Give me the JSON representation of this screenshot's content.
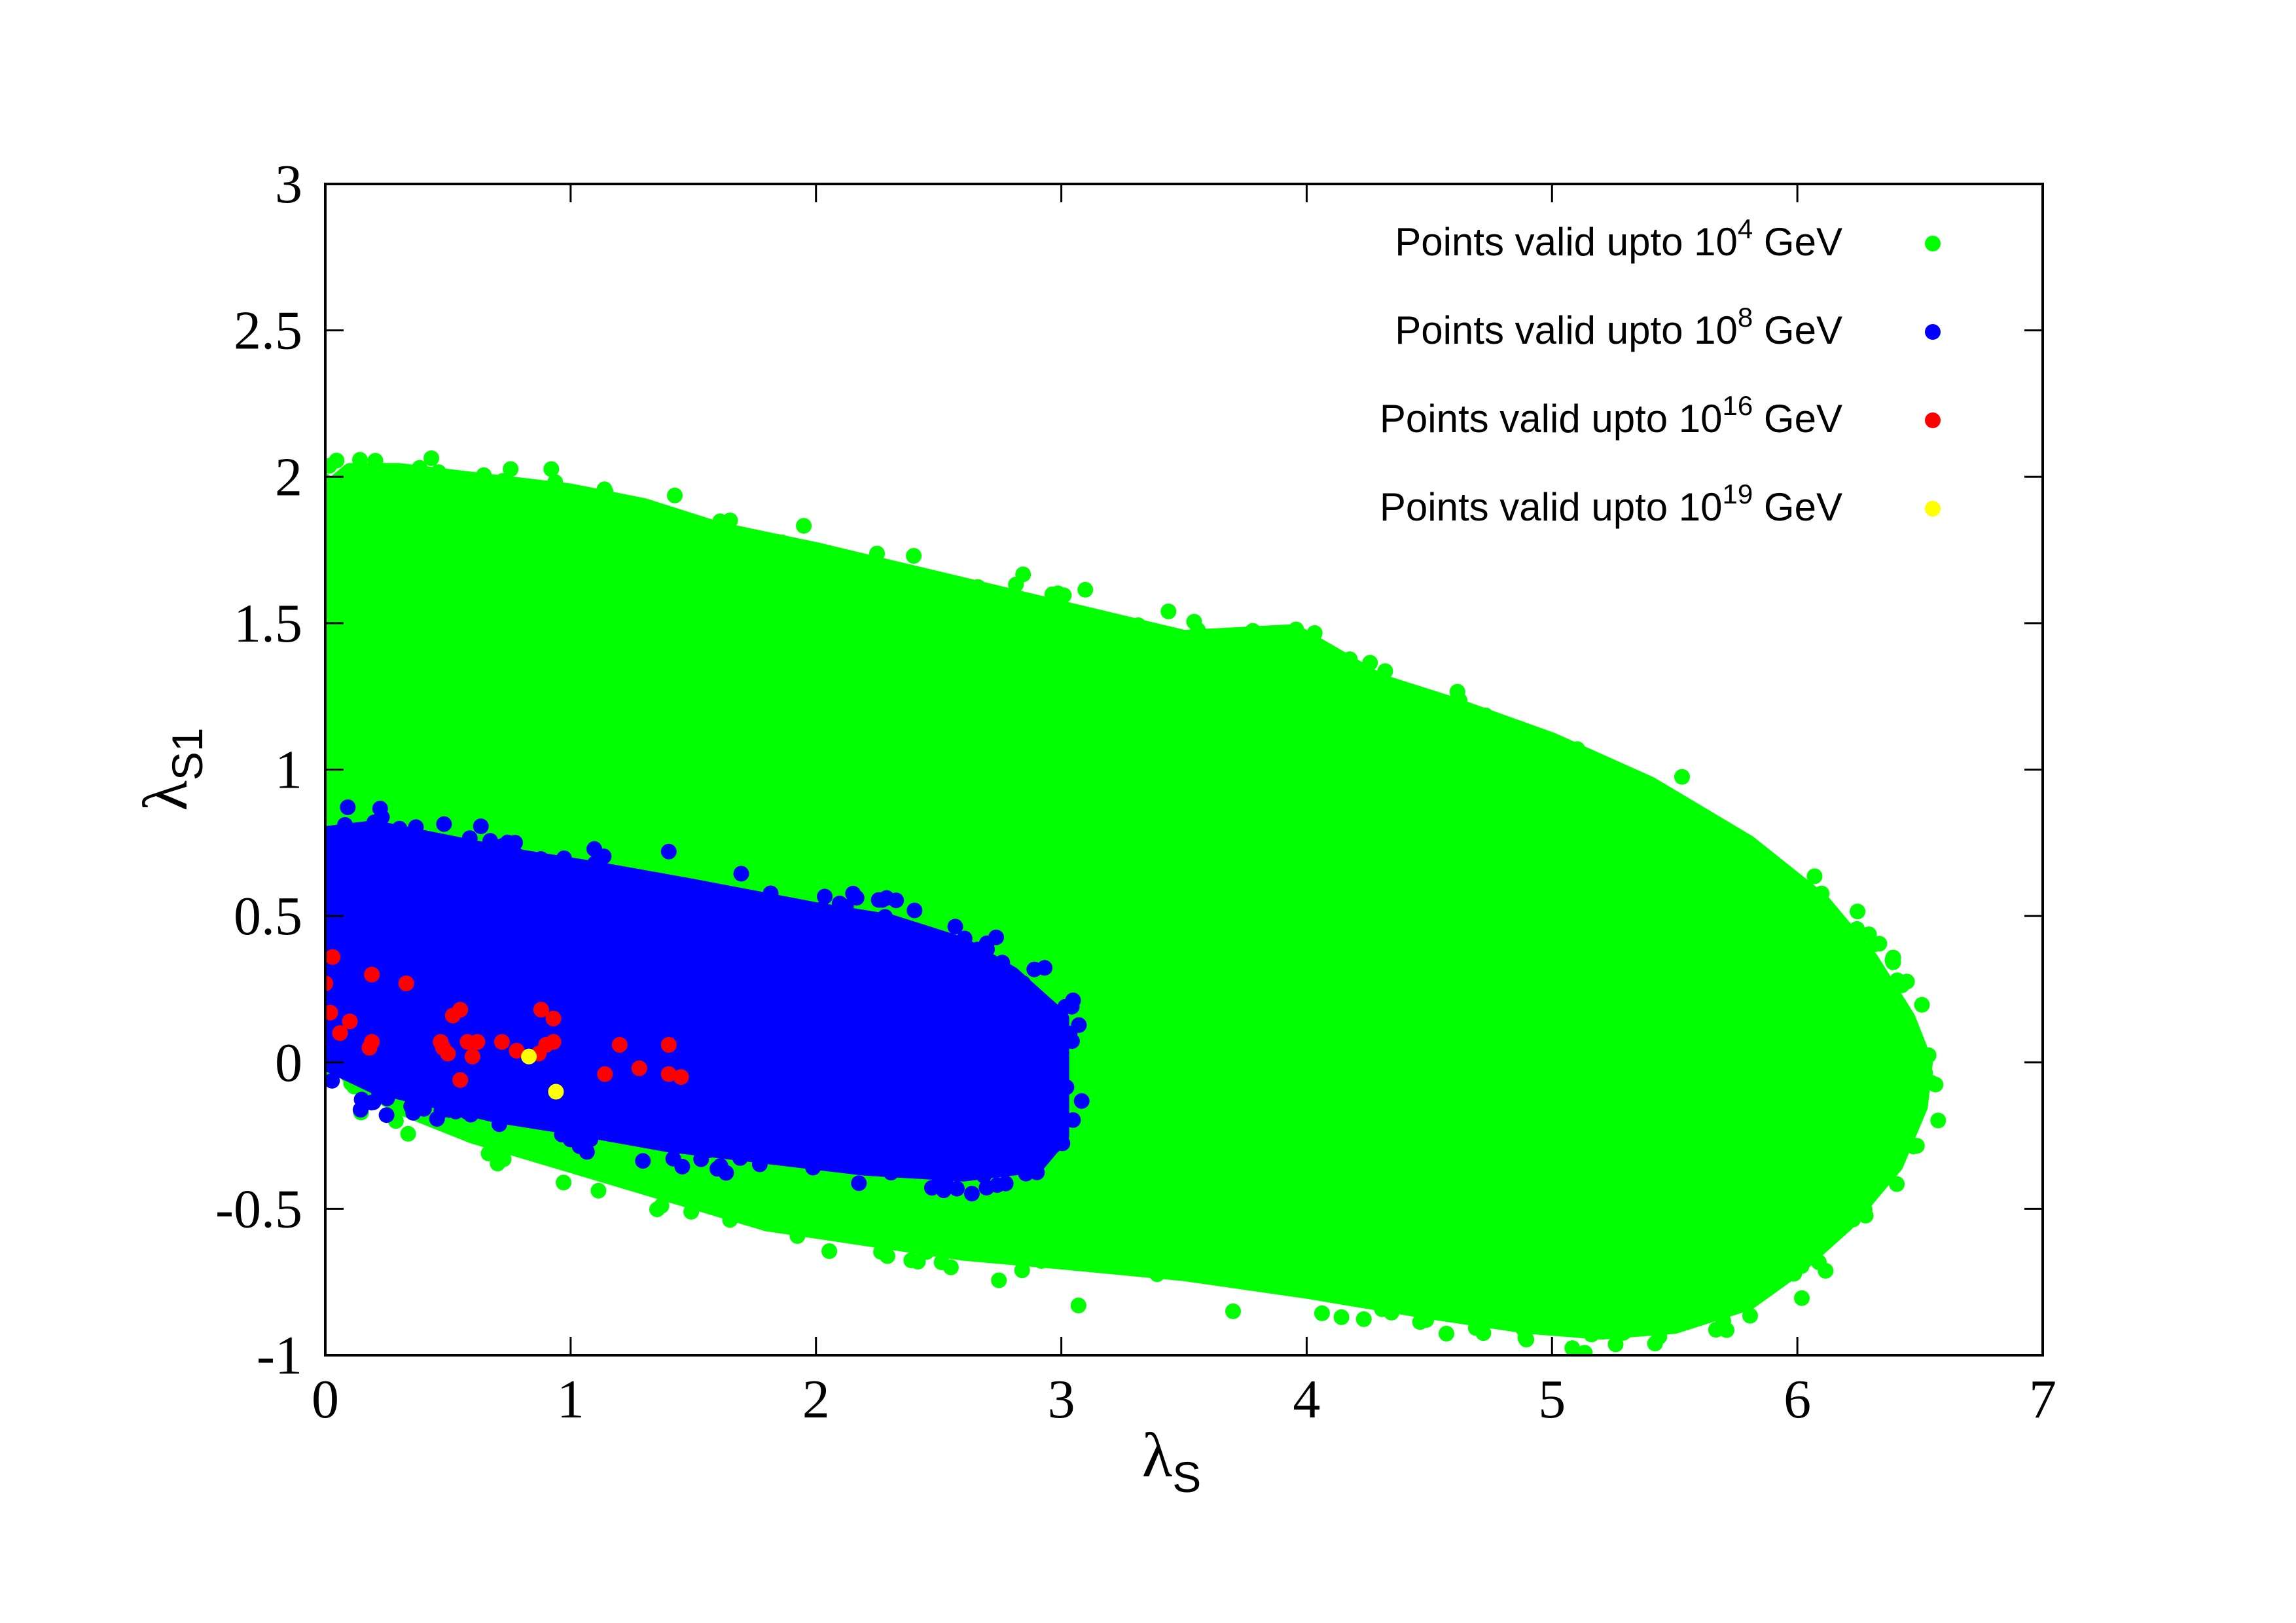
{
  "chart_data": {
    "type": "scatter",
    "title": "",
    "xlabel": {
      "symbol": "λ",
      "subscript": "S"
    },
    "ylabel": {
      "symbol": "λ",
      "subscript": "S1"
    },
    "xlim": [
      0,
      7
    ],
    "ylim": [
      -1,
      3
    ],
    "xticks": [
      "0",
      "1",
      "2",
      "3",
      "4",
      "5",
      "6",
      "7"
    ],
    "yticks": [
      "-1",
      "-0.5",
      "0",
      "0.5",
      "1",
      "1.5",
      "2",
      "2.5",
      "3"
    ],
    "xtick_values": [
      0,
      1,
      2,
      3,
      4,
      5,
      6,
      7
    ],
    "ytick_values": [
      -1,
      -0.5,
      0,
      0.5,
      1,
      1.5,
      2,
      2.5,
      3
    ],
    "grid": false,
    "legend_position": "top-right",
    "series": [
      {
        "name": "Points valid upto 10^4 GeV",
        "label_text": "Points valid upto 10",
        "label_exponent": "4",
        "label_unit": "GeV",
        "color": "#00ff00",
        "region": {
          "x": [
            0,
            0.1,
            0.3,
            0.5,
            0.8,
            1,
            1.3,
            1.6,
            2,
            2.5,
            3,
            3.5,
            3.95,
            4.3,
            4.6,
            5,
            5.4,
            5.8,
            6.1,
            6.3,
            6.45,
            6.52,
            6.5,
            6.4,
            6.2,
            6,
            5.8,
            5.5,
            5.2,
            4.9,
            4.5,
            4,
            3.5,
            3,
            2.6,
            2.2,
            1.8,
            1.4,
            1,
            0.6,
            0.3,
            0.1,
            0
          ],
          "y": [
            1.95,
            2.02,
            2.02,
            2.0,
            1.97,
            1.95,
            1.9,
            1.82,
            1.75,
            1.65,
            1.55,
            1.45,
            1.47,
            1.3,
            1.22,
            1.1,
            0.95,
            0.75,
            0.55,
            0.35,
            0.15,
            0.0,
            -0.15,
            -0.35,
            -0.55,
            -0.7,
            -0.82,
            -0.9,
            -0.92,
            -0.9,
            -0.85,
            -0.78,
            -0.72,
            -0.68,
            -0.65,
            -0.6,
            -0.55,
            -0.45,
            -0.35,
            -0.25,
            -0.15,
            -0.05,
            0.05
          ]
        },
        "outliers": [
          [
            5.42,
            -0.96
          ],
          [
            5.3,
            -0.9
          ],
          [
            3.7,
            -0.85
          ],
          [
            4.63,
            -0.85
          ],
          [
            3.07,
            -0.83
          ],
          [
            2.55,
            -0.7
          ],
          [
            1.37,
            -0.49
          ],
          [
            0.1,
            -0.05
          ]
        ]
      },
      {
        "name": "Points valid upto 10^8 GeV",
        "label_text": "Points valid upto 10",
        "label_exponent": "8",
        "label_unit": "GeV",
        "color": "#0000ff",
        "region": {
          "x": [
            0,
            0.2,
            0.5,
            0.8,
            1.1,
            1.5,
            2,
            2.3,
            2.6,
            2.8,
            3.0,
            3.0,
            2.9,
            2.6,
            2.2,
            1.8,
            1.4,
            1.0,
            0.7,
            0.4,
            0.2,
            0
          ],
          "y": [
            0.78,
            0.8,
            0.75,
            0.7,
            0.66,
            0.6,
            0.52,
            0.48,
            0.4,
            0.3,
            0.15,
            -0.25,
            -0.35,
            -0.38,
            -0.36,
            -0.32,
            -0.28,
            -0.22,
            -0.18,
            -0.12,
            -0.08,
            0.0
          ]
        },
        "outliers": [
          [
            1.4,
            0.72
          ],
          [
            0.35,
            -0.15
          ],
          [
            2.5,
            -0.38
          ],
          [
            0.2,
            0.82
          ]
        ]
      },
      {
        "name": "Points valid upto 10^16 GeV",
        "label_text": "Points valid upto 10",
        "label_exponent": "16",
        "label_unit": "GeV",
        "color": "#ff0000",
        "points": [
          [
            0,
            0.27
          ],
          [
            0.03,
            0.36
          ],
          [
            0.02,
            0.17
          ],
          [
            0.06,
            0.1
          ],
          [
            0.1,
            0.14
          ],
          [
            0.19,
            0.3
          ],
          [
            0.33,
            0.27
          ],
          [
            0.19,
            0.07
          ],
          [
            0.18,
            0.05
          ],
          [
            0.48,
            0.05
          ],
          [
            0.5,
            0.03
          ],
          [
            0.52,
            0.16
          ],
          [
            0.55,
            0.18
          ],
          [
            0.47,
            0.07
          ],
          [
            0.58,
            0.07
          ],
          [
            0.6,
            0.02
          ],
          [
            0.62,
            0.07
          ],
          [
            0.55,
            -0.06
          ],
          [
            0.72,
            0.07
          ],
          [
            0.78,
            0.04
          ],
          [
            0.88,
            0.18
          ],
          [
            0.93,
            0.15
          ],
          [
            0.9,
            0.06
          ],
          [
            0.93,
            0.07
          ],
          [
            0.87,
            0.03
          ],
          [
            1.2,
            0.06
          ],
          [
            1.28,
            -0.02
          ],
          [
            1.14,
            -0.04
          ],
          [
            1.4,
            0.06
          ],
          [
            1.4,
            -0.04
          ],
          [
            1.45,
            -0.05
          ]
        ]
      },
      {
        "name": "Points valid upto 10^19 GeV",
        "label_text": "Points valid upto 10",
        "label_exponent": "19",
        "label_unit": "GeV",
        "color": "#ffff00",
        "points": [
          [
            0.83,
            0.02
          ],
          [
            0.94,
            -0.1
          ]
        ]
      }
    ]
  }
}
